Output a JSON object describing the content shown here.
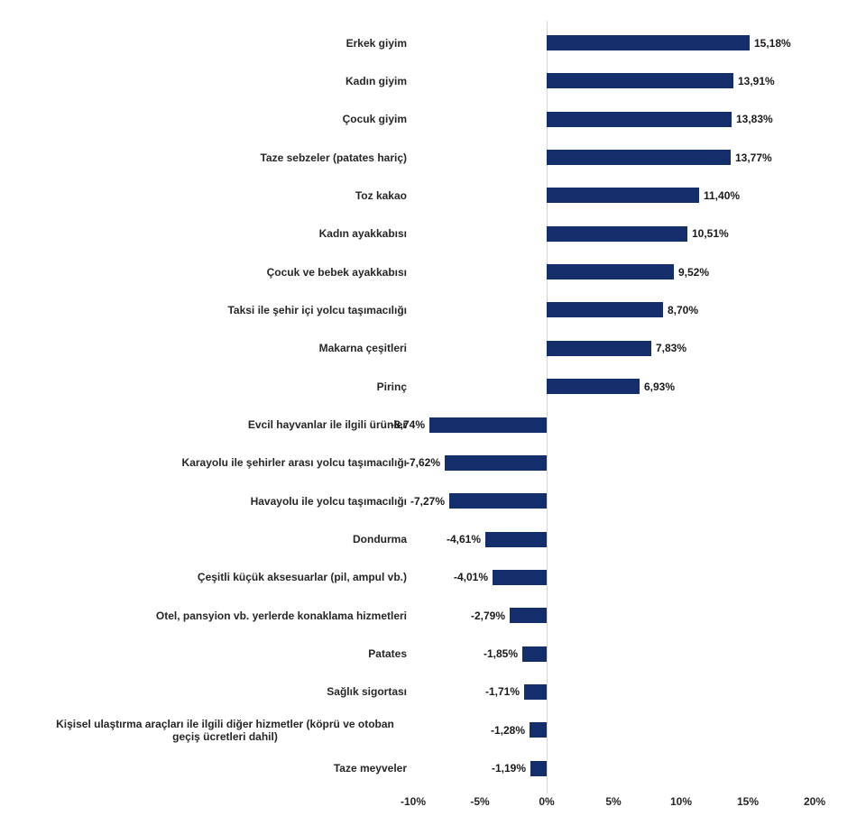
{
  "chart_data": {
    "type": "bar",
    "orientation": "horizontal",
    "title": "",
    "xlabel": "",
    "ylabel": "",
    "xlim": [
      -10,
      20
    ],
    "grid": "off",
    "legend": "none",
    "bar_color": "#132e6b",
    "axis_line_color": "#d6d6d6",
    "text_color": "#262626",
    "x_ticks": [
      {
        "label": "-10%",
        "value": -10
      },
      {
        "label": "-5%",
        "value": -5
      },
      {
        "label": "0%",
        "value": 0
      },
      {
        "label": "5%",
        "value": 5
      },
      {
        "label": "10%",
        "value": 10
      },
      {
        "label": "15%",
        "value": 15
      },
      {
        "label": "20%",
        "value": 20
      }
    ],
    "items": [
      {
        "label": "Erkek giyim",
        "value": 15.18,
        "value_label": "15,18%"
      },
      {
        "label": "Kadın giyim",
        "value": 13.91,
        "value_label": "13,91%"
      },
      {
        "label": "Çocuk giyim",
        "value": 13.83,
        "value_label": "13,83%"
      },
      {
        "label": "Taze sebzeler (patates hariç)",
        "value": 13.77,
        "value_label": "13,77%"
      },
      {
        "label": "Toz kakao",
        "value": 11.4,
        "value_label": "11,40%"
      },
      {
        "label": "Kadın ayakkabısı",
        "value": 10.51,
        "value_label": "10,51%"
      },
      {
        "label": "Çocuk ve bebek ayakkabısı",
        "value": 9.52,
        "value_label": "9,52%"
      },
      {
        "label": "Taksi ile şehir içi yolcu taşımacılığı",
        "value": 8.7,
        "value_label": "8,70%"
      },
      {
        "label": "Makarna çeşitleri",
        "value": 7.83,
        "value_label": "7,83%"
      },
      {
        "label": "Pirinç",
        "value": 6.93,
        "value_label": "6,93%"
      },
      {
        "label": "Evcil hayvanlar ile ilgili ürünler",
        "value": -8.74,
        "value_label": "-8,74%"
      },
      {
        "label": "Karayolu ile şehirler arası yolcu taşımacılığı",
        "value": -7.62,
        "value_label": "-7,62%"
      },
      {
        "label": "Havayolu ile yolcu taşımacılığı",
        "value": -7.27,
        "value_label": "-7,27%"
      },
      {
        "label": "Dondurma",
        "value": -4.61,
        "value_label": "-4,61%"
      },
      {
        "label": "Çeşitli küçük aksesuarlar (pil, ampul vb.)",
        "value": -4.01,
        "value_label": "-4,01%"
      },
      {
        "label": "Otel, pansyion vb. yerlerde konaklama hizmetleri",
        "value": -2.79,
        "value_label": "-2,79%"
      },
      {
        "label": "Patates",
        "value": -1.85,
        "value_label": "-1,85%"
      },
      {
        "label": "Sağlık sigortası",
        "value": -1.71,
        "value_label": "-1,71%"
      },
      {
        "label": "Kişisel ulaştırma araçları ile ilgili diğer hizmetler (köprü ve otoban geçiş ücretleri dahil)",
        "value": -1.28,
        "value_label": "-1,28%"
      },
      {
        "label": "Taze meyveler",
        "value": -1.19,
        "value_label": "-1,19%"
      }
    ]
  }
}
